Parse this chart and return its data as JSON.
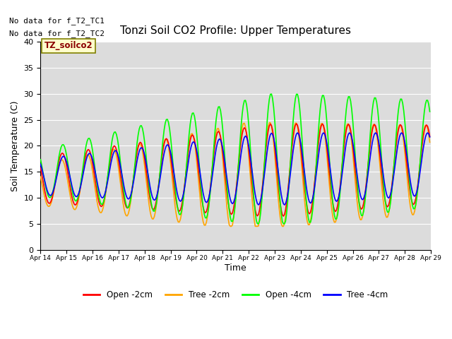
{
  "title": "Tonzi Soil CO2 Profile: Upper Temperatures",
  "ylabel": "Soil Temperature (C)",
  "xlabel": "Time",
  "top_left_text1": "No data for f_T2_TC1",
  "top_left_text2": "No data for f_T2_TC2",
  "box_label": "TZ_soilco2",
  "ylim": [
    0,
    40
  ],
  "yticks": [
    0,
    5,
    10,
    15,
    20,
    25,
    30,
    35,
    40
  ],
  "date_start": 14,
  "date_end": 29,
  "n_days": 15,
  "colors": {
    "open_2cm": "#FF0000",
    "tree_2cm": "#FFA500",
    "open_4cm": "#00FF00",
    "tree_4cm": "#0000FF"
  },
  "legend_labels": [
    "Open -2cm",
    "Tree -2cm",
    "Open -4cm",
    "Tree -4cm"
  ],
  "bg_color": "#DCDCDC",
  "fig_bg": "#FFFFFF",
  "grid_color": "#FFFFFF",
  "linewidth": 1.2
}
